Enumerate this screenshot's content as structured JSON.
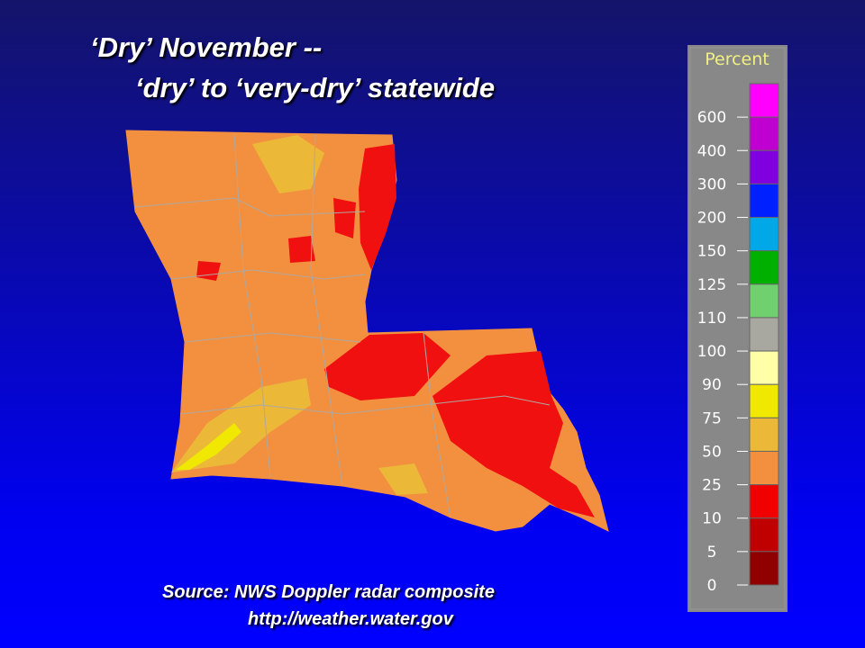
{
  "slide": {
    "title_line1": "‘Dry’  November  --",
    "title_line2": "‘dry’  to ‘very-dry’  statewide",
    "source_line1": "Source:  NWS Doppler radar composite",
    "source_line2": "http://weather.water.gov"
  },
  "legend": {
    "title": "Percent",
    "entries": [
      {
        "label": "600",
        "color": "#ff00ff"
      },
      {
        "label": "400",
        "color": "#c000d0"
      },
      {
        "label": "300",
        "color": "#8000e0"
      },
      {
        "label": "200",
        "color": "#0020ff"
      },
      {
        "label": "150",
        "color": "#00a8e8"
      },
      {
        "label": "125",
        "color": "#00b000"
      },
      {
        "label": "110",
        "color": "#70d070"
      },
      {
        "label": "100",
        "color": "#a8a8a0"
      },
      {
        "label": "90",
        "color": "#ffffa8"
      },
      {
        "label": "75",
        "color": "#f0e800"
      },
      {
        "label": "50",
        "color": "#ecb838"
      },
      {
        "label": "25",
        "color": "#f29040"
      },
      {
        "label": "10",
        "color": "#f00000"
      },
      {
        "label": "5",
        "color": "#c00000"
      },
      {
        "label": "0",
        "color": "#900000"
      }
    ]
  }
}
